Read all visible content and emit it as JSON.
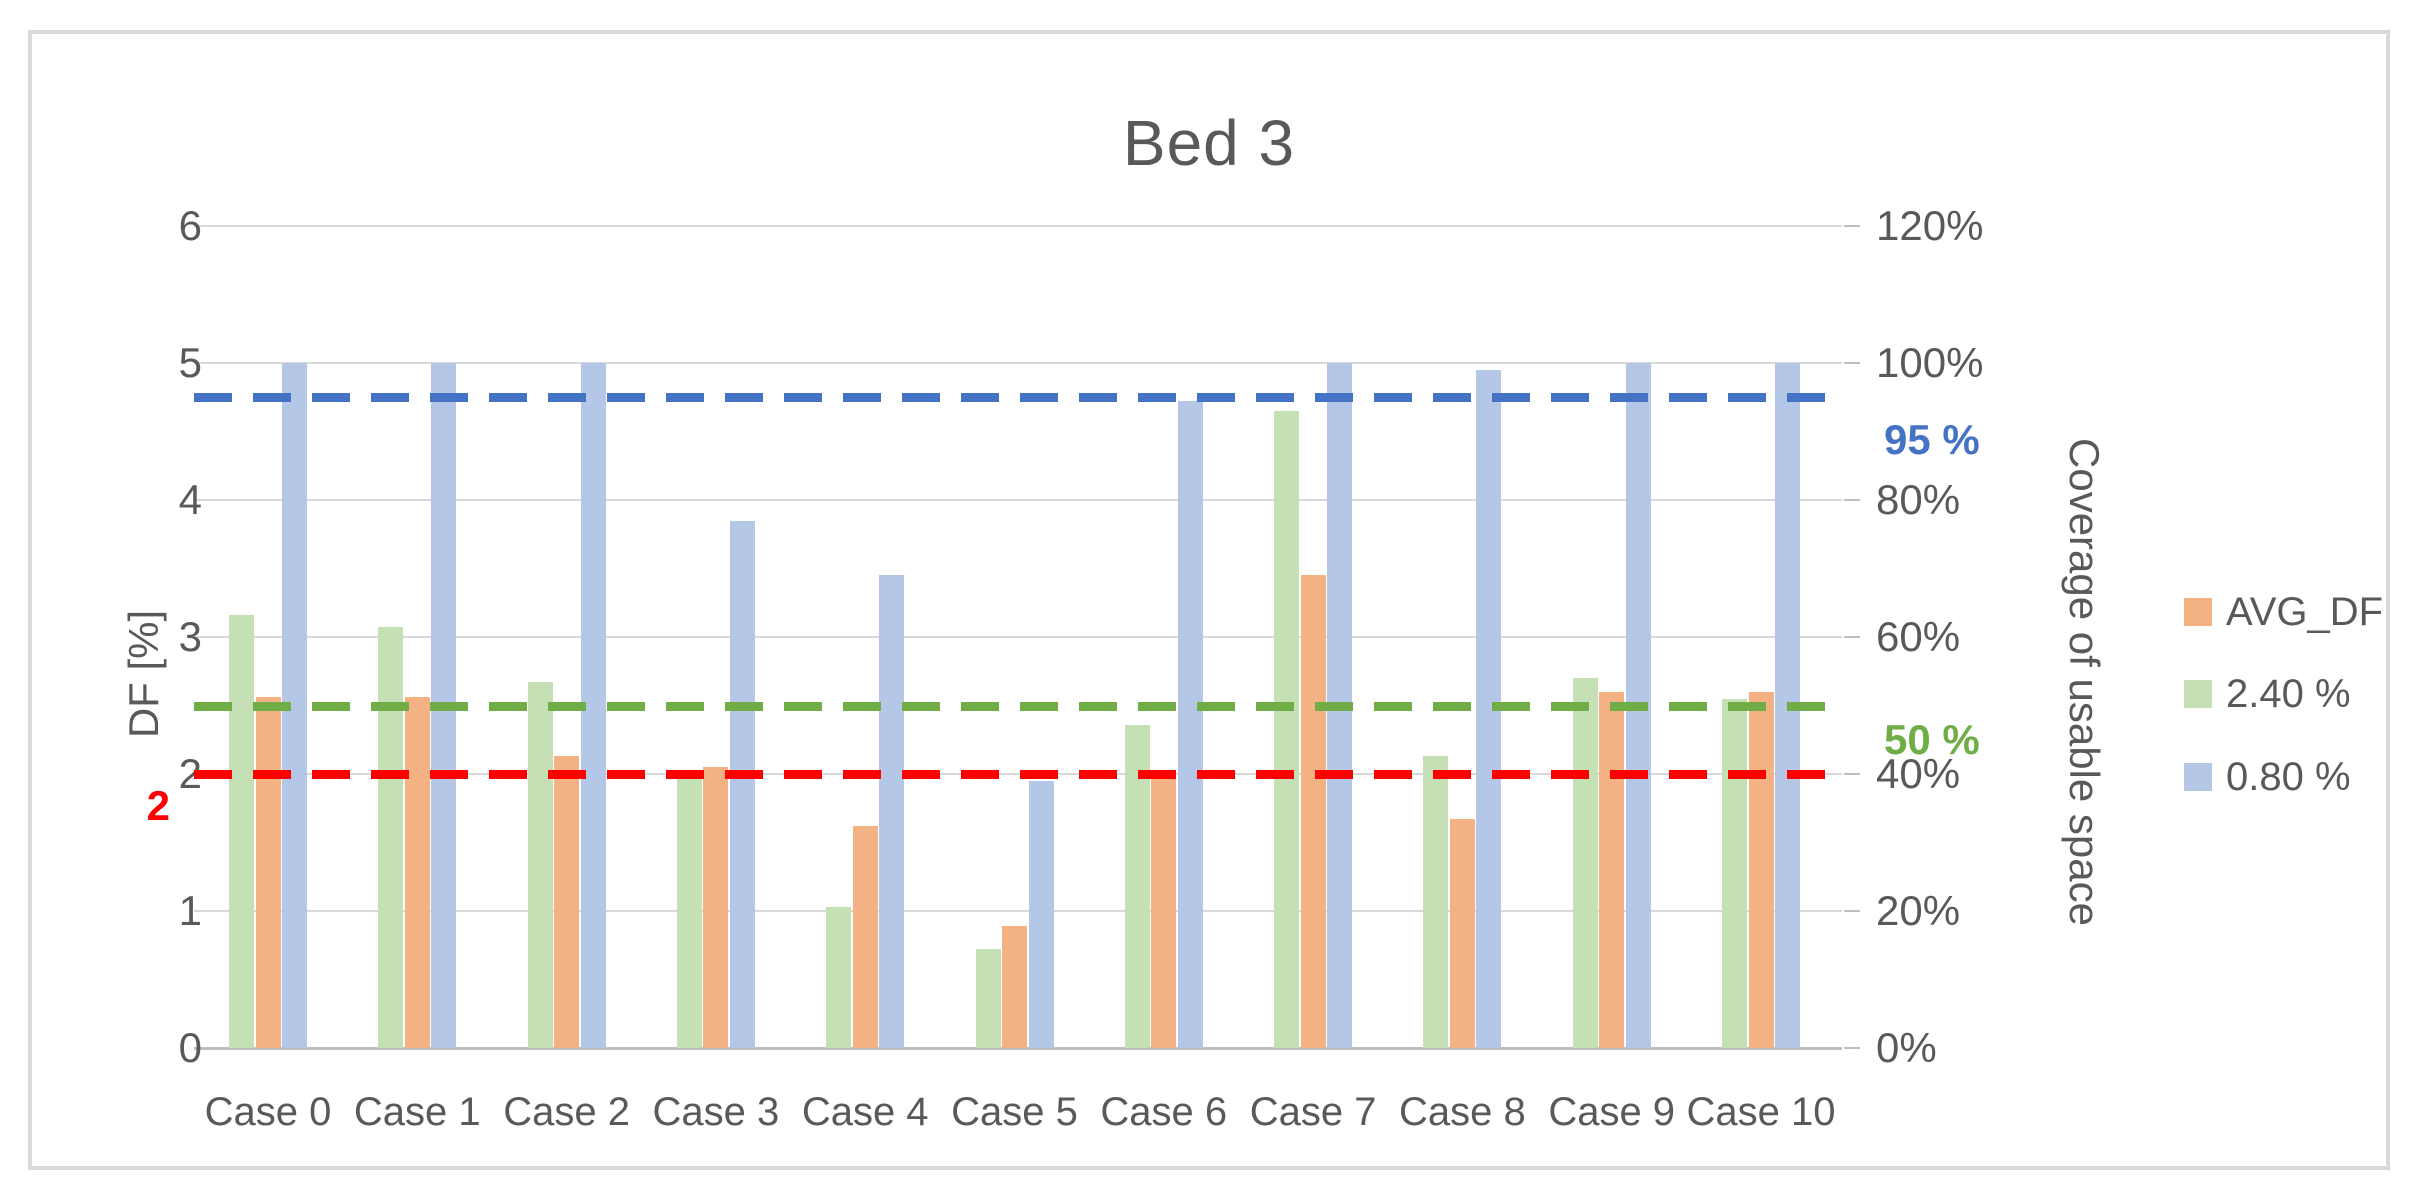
{
  "title": "Bed 3",
  "colors": {
    "text": "#595959",
    "gridline": "#d9d9d9",
    "axis_line": "#bfbfbf",
    "card_border": "#d9d9d9",
    "bar_avg_df": "#F4B183",
    "bar_240": "#C5E0B4",
    "bar_080": "#B4C7E7",
    "ref_blue": "#4472C4",
    "ref_green": "#70AD47",
    "ref_red": "#FF0000"
  },
  "chart_data": {
    "type": "bar",
    "title": "Bed 3",
    "categories": [
      "Case 0",
      "Case 1",
      "Case 2",
      "Case 3",
      "Case 4",
      "Case 5",
      "Case 6",
      "Case 7",
      "Case 8",
      "Case 9",
      "Case 10"
    ],
    "y_left": {
      "label": "DF [%]",
      "min": 0,
      "max": 6,
      "ticks": [
        "6",
        "5",
        "4",
        "3",
        "2",
        "1",
        "0"
      ]
    },
    "y_right": {
      "label": "Coverage of usable space",
      "min_pct": 0,
      "max_pct": 120,
      "ticks": [
        "120%",
        "100%",
        "80%",
        "60%",
        "40%",
        "20%",
        "0%"
      ]
    },
    "grid": "horizontal-only",
    "legend_position": "right",
    "bar_order": [
      "2.40 %",
      "AVG_DF",
      "0.80 %"
    ],
    "series": [
      {
        "name": "AVG_DF",
        "axis": "left",
        "color": "#F4B183",
        "values": [
          2.56,
          2.56,
          2.13,
          2.05,
          1.62,
          0.89,
          2.02,
          3.45,
          1.67,
          2.6,
          2.6
        ]
      },
      {
        "name": "2.40 %",
        "axis": "left",
        "color": "#C5E0B4",
        "values": [
          3.16,
          3.07,
          2.67,
          2.03,
          1.03,
          0.72,
          2.36,
          4.65,
          2.13,
          2.7,
          2.55
        ]
      },
      {
        "name": "0.80 %",
        "axis": "right",
        "color": "#B4C7E7",
        "values_pct": [
          100,
          100,
          100,
          77,
          69,
          39,
          94.5,
          100,
          99,
          100,
          100
        ]
      }
    ],
    "reference_lines": [
      {
        "id": "ref-95",
        "label": "95 %",
        "axis": "right",
        "value_pct": 95,
        "color": "#4472C4"
      },
      {
        "id": "ref-50",
        "label": "50 %",
        "axis": "right",
        "value_pct": 50,
        "color": "#70AD47"
      },
      {
        "id": "ref-2",
        "label": "2",
        "axis": "left",
        "value": 2,
        "color": "#FF0000"
      }
    ],
    "legend_items": [
      {
        "label": "AVG_DF",
        "color": "#F4B183"
      },
      {
        "label": "2.40 %",
        "color": "#C5E0B4"
      },
      {
        "label": "0.80 %",
        "color": "#B4C7E7"
      }
    ]
  }
}
